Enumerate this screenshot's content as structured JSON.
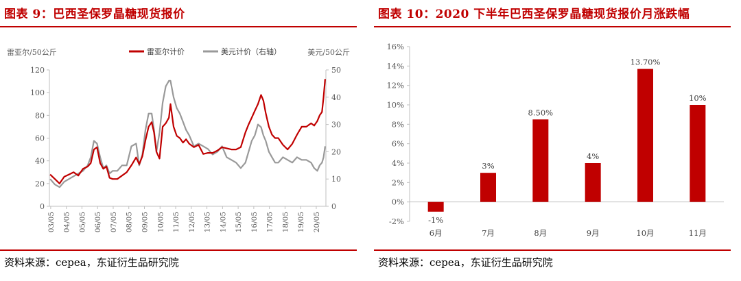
{
  "left": {
    "title": "图表 9：巴西圣保罗晶糖现货报价",
    "source": "资料来源：cepea，东证衍生品研究院"
  },
  "right": {
    "title": "图表 10：2020 下半年巴西圣保罗晶糖现货报价月涨跌幅",
    "source": "资料来源：cepea，东证衍生品研究院"
  },
  "colors": {
    "red": "#c00000",
    "gray": "#999999",
    "axis": "#bfbfbf"
  },
  "chart_data": [
    {
      "type": "line",
      "ylabel_left": "雷亚尔/50公斤",
      "ylabel_right": "美元/50公斤",
      "ylim_left": [
        0,
        120
      ],
      "ylim_right": [
        0,
        50
      ],
      "yticks_left": [
        "0",
        "20",
        "40",
        "60",
        "80",
        "100",
        "120"
      ],
      "yticks_right": [
        "0",
        "10",
        "20",
        "30",
        "40",
        "50"
      ],
      "x_tick_labels": [
        "03/05",
        "04/05",
        "05/05",
        "06/05",
        "07/05",
        "08/05",
        "09/05",
        "10/05",
        "11/05",
        "12/05",
        "13/05",
        "14/05",
        "15/05",
        "16/05",
        "17/05",
        "18/05",
        "19/05",
        "20/05"
      ],
      "x_range": [
        2003.25,
        2020.95
      ],
      "legend_position": "top",
      "series": [
        {
          "name": "雷亚尔计价",
          "axis": "left",
          "color": "#c00000",
          "x": [
            2003.3,
            2003.6,
            2003.9,
            2004.2,
            2004.5,
            2004.8,
            2005.1,
            2005.4,
            2005.7,
            2005.9,
            2006.1,
            2006.3,
            2006.5,
            2006.7,
            2006.9,
            2007.1,
            2007.3,
            2007.6,
            2007.9,
            2008.2,
            2008.5,
            2008.8,
            2009.0,
            2009.2,
            2009.4,
            2009.6,
            2009.8,
            2009.95,
            2010.1,
            2010.3,
            2010.5,
            2010.7,
            2010.9,
            2011.0,
            2011.2,
            2011.4,
            2011.6,
            2011.8,
            2012.0,
            2012.2,
            2012.5,
            2012.8,
            2013.1,
            2013.4,
            2013.7,
            2014.0,
            2014.3,
            2014.6,
            2014.9,
            2015.2,
            2015.5,
            2015.8,
            2016.0,
            2016.2,
            2016.4,
            2016.6,
            2016.8,
            2016.95,
            2017.1,
            2017.3,
            2017.5,
            2017.7,
            2017.9,
            2018.2,
            2018.5,
            2018.8,
            2019.1,
            2019.4,
            2019.7,
            2020.0,
            2020.2,
            2020.4,
            2020.55,
            2020.7,
            2020.8,
            2020.9
          ],
          "y": [
            28,
            24,
            20,
            26,
            28,
            30,
            27,
            33,
            35,
            38,
            50,
            52,
            38,
            33,
            35,
            25,
            24,
            24,
            27,
            30,
            36,
            43,
            37,
            44,
            58,
            70,
            74,
            65,
            48,
            42,
            70,
            73,
            78,
            90,
            70,
            62,
            60,
            56,
            59,
            55,
            52,
            54,
            46,
            47,
            47,
            49,
            52,
            51,
            50,
            50,
            52,
            65,
            72,
            78,
            84,
            90,
            98,
            93,
            82,
            70,
            63,
            60,
            60,
            54,
            50,
            55,
            63,
            70,
            70,
            73,
            71,
            75,
            80,
            83,
            96,
            112
          ]
        },
        {
          "name": "美元计价（右轴）",
          "axis": "right",
          "color": "#999999",
          "x": [
            2003.3,
            2003.6,
            2003.9,
            2004.2,
            2004.5,
            2004.8,
            2005.1,
            2005.4,
            2005.7,
            2005.9,
            2006.1,
            2006.3,
            2006.5,
            2006.7,
            2006.9,
            2007.1,
            2007.3,
            2007.6,
            2007.9,
            2008.2,
            2008.5,
            2008.8,
            2009.0,
            2009.2,
            2009.4,
            2009.6,
            2009.8,
            2009.95,
            2010.1,
            2010.3,
            2010.5,
            2010.7,
            2010.9,
            2011.0,
            2011.2,
            2011.4,
            2011.6,
            2011.8,
            2012.0,
            2012.2,
            2012.5,
            2012.8,
            2013.1,
            2013.4,
            2013.7,
            2014.0,
            2014.3,
            2014.6,
            2014.9,
            2015.2,
            2015.5,
            2015.8,
            2016.0,
            2016.2,
            2016.4,
            2016.6,
            2016.8,
            2016.95,
            2017.1,
            2017.3,
            2017.5,
            2017.7,
            2017.9,
            2018.2,
            2018.5,
            2018.8,
            2019.1,
            2019.4,
            2019.7,
            2020.0,
            2020.2,
            2020.4,
            2020.55,
            2020.7,
            2020.8,
            2020.9
          ],
          "y": [
            10,
            8,
            7,
            9,
            10,
            11,
            12,
            13,
            15,
            18,
            24,
            23,
            18,
            14,
            15,
            12,
            13,
            13,
            15,
            15,
            22,
            23,
            15,
            19,
            28,
            34,
            34,
            28,
            20,
            27,
            38,
            44,
            46,
            46,
            40,
            36,
            34,
            31,
            28,
            26,
            22,
            23,
            22,
            21,
            19,
            20,
            22,
            18,
            17,
            16,
            14,
            16,
            20,
            24,
            26,
            30,
            29,
            26,
            24,
            20,
            18,
            16,
            16,
            18,
            17,
            16,
            18,
            17,
            17,
            16,
            14,
            13,
            15,
            16,
            18,
            22
          ]
        }
      ]
    },
    {
      "type": "bar",
      "categories": [
        "6月",
        "7月",
        "8月",
        "9月",
        "10月",
        "11月"
      ],
      "values": [
        -1,
        3,
        8.5,
        4,
        13.7,
        10
      ],
      "data_labels": [
        "-1%",
        "3%",
        "8.50%",
        "4%",
        "13.70%",
        "10%"
      ],
      "yticks": [
        "-2%",
        "0%",
        "2%",
        "4%",
        "6%",
        "8%",
        "10%",
        "12%",
        "14%",
        "16%"
      ],
      "ylim": [
        -2,
        16
      ],
      "bar_color": "#c00000"
    }
  ]
}
